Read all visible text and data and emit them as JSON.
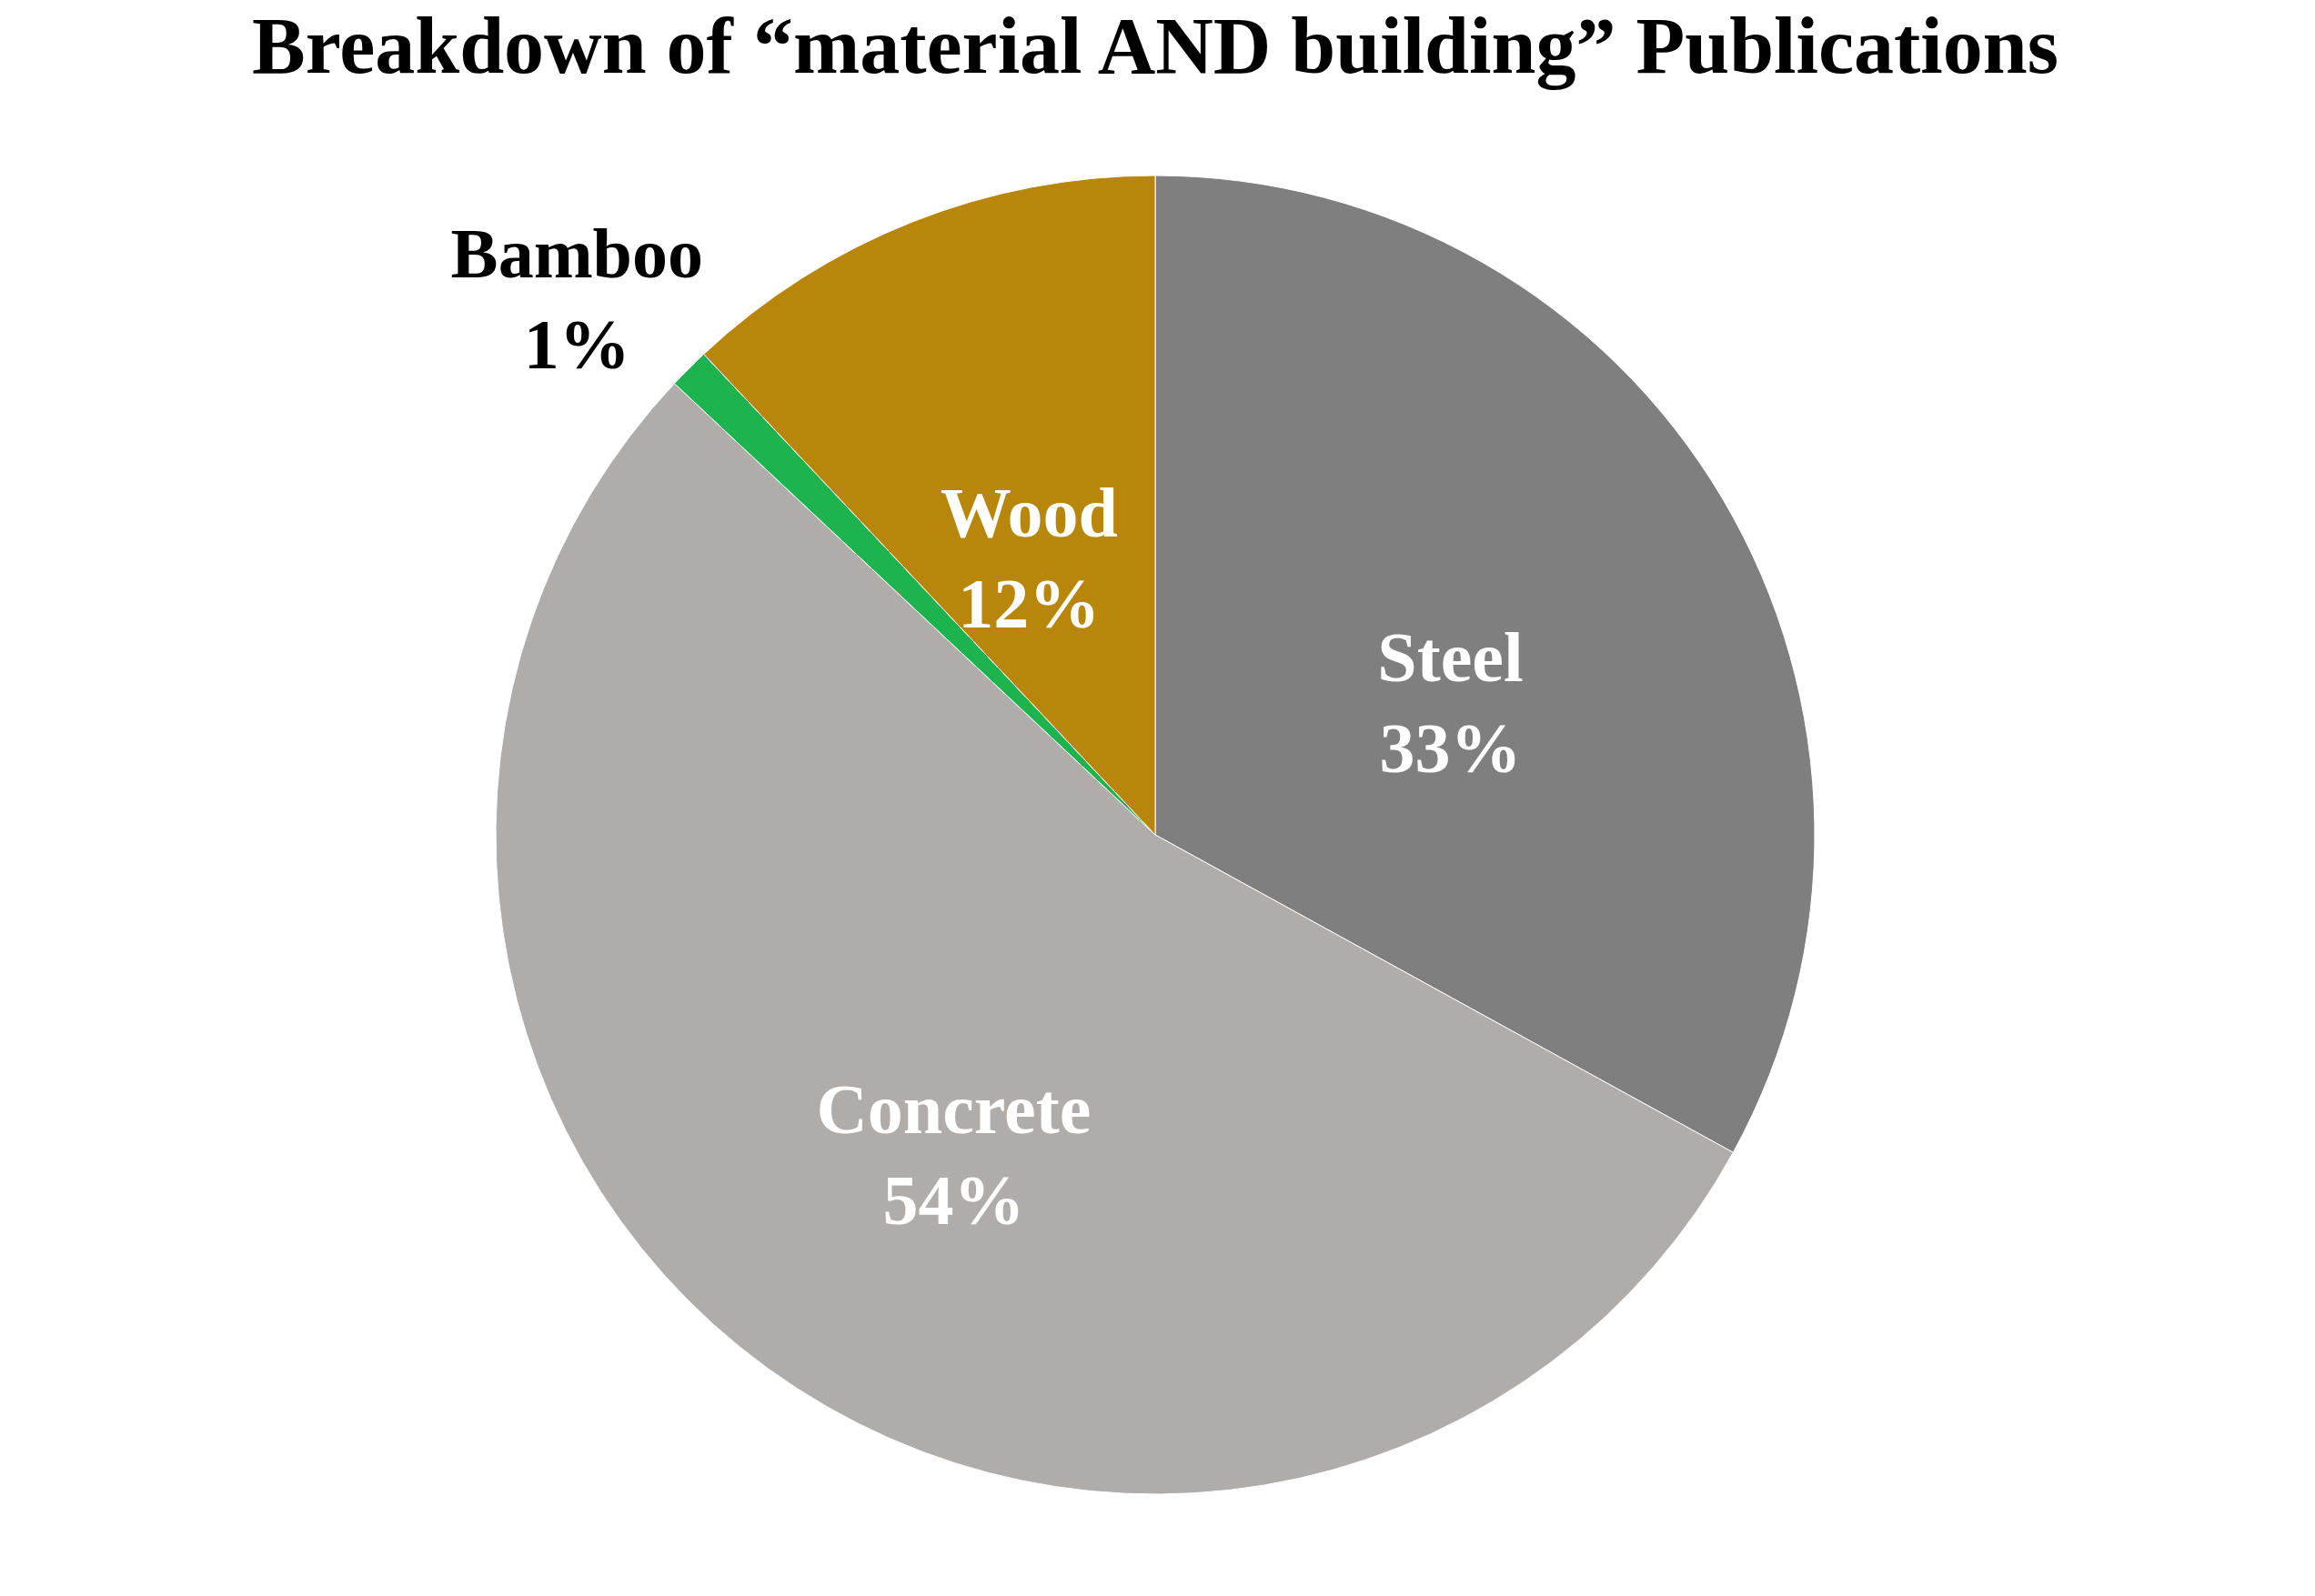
{
  "chart_data": {
    "type": "pie",
    "title": "Breakdown of “material AND building” Publications",
    "categories": [
      "Steel",
      "Concrete",
      "Bamboo",
      "Wood"
    ],
    "values": [
      33,
      54,
      1,
      12
    ],
    "colors": [
      "#7f7f7f",
      "#afacaa",
      "#1db34f",
      "#b8860b"
    ],
    "value_labels": [
      "33%",
      "54%",
      "1%",
      "12%"
    ],
    "data_labels": true
  }
}
